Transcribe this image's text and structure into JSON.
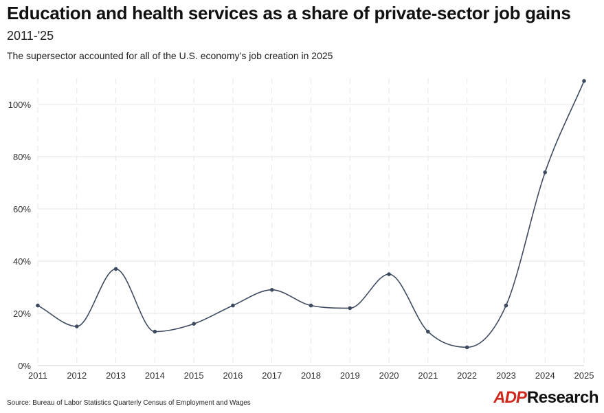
{
  "header": {
    "title": "Education and health services as a share of private-sector job gains",
    "subtitle": "2011-'25",
    "description": "The supersector accounted for all of the U.S. economy’s job creation in 2025"
  },
  "footer": {
    "source": "Source: Bureau of Labor Statistics Quarterly Census of Employment and Wages",
    "logo_brand": "ADP",
    "logo_text": "Research"
  },
  "colors": {
    "line": "#3d4a60",
    "grid": "#e6e6e6",
    "brand_red": "#d0271d"
  },
  "chart_data": {
    "type": "line",
    "title": "Education and health services as a share of private-sector job gains",
    "subtitle": "2011-'25",
    "x": [
      "2011",
      "2012",
      "2013",
      "2014",
      "2015",
      "2016",
      "2017",
      "2018",
      "2019",
      "2020",
      "2021",
      "2022",
      "2023",
      "2024",
      "2025"
    ],
    "series": [
      {
        "values": [
          23,
          15,
          37,
          13,
          16,
          23,
          29,
          23,
          22,
          35,
          13,
          7,
          23,
          74,
          109
        ]
      }
    ],
    "xlabel": "",
    "ylabel": "",
    "ylim": [
      0,
      110
    ],
    "yticks": [
      0,
      20,
      40,
      60,
      80,
      100
    ],
    "ytick_labels": [
      "0%",
      "20%",
      "40%",
      "60%",
      "80%",
      "100%"
    ],
    "grid": true,
    "legend": "none"
  }
}
